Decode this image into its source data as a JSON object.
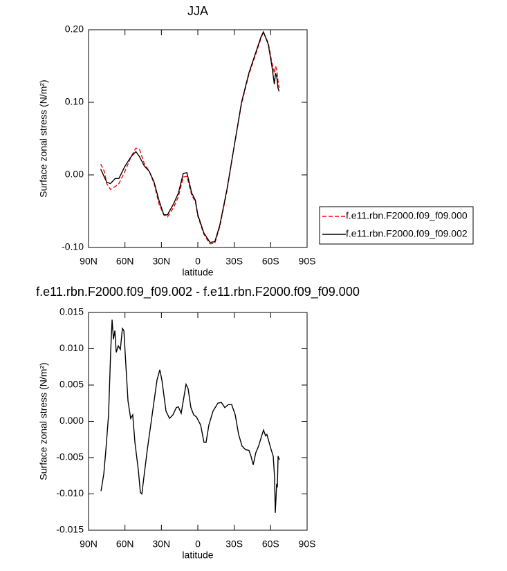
{
  "chart_data": [
    {
      "type": "line",
      "title": "JJA",
      "xlabel": "latitude",
      "ylabel": "Surface zonal stress (N/m²)",
      "x": [
        80,
        77,
        75,
        72,
        68,
        65,
        60,
        55,
        51,
        48,
        44,
        40,
        36,
        32,
        28,
        25,
        20,
        16,
        12,
        9,
        5,
        2,
        0,
        -5,
        -10,
        -14,
        -18,
        -24,
        -30,
        -36,
        -42,
        -48,
        -52,
        -54,
        -58,
        -61,
        -63,
        -64,
        -65,
        -66,
        -67
      ],
      "series": [
        {
          "name": "f.e11.rbn.F2000.f09_f09.000",
          "color": "#ff0000",
          "style": "dashed",
          "values": [
            0.015,
            0.005,
            -0.012,
            -0.02,
            -0.016,
            -0.012,
            0.005,
            0.025,
            0.037,
            0.035,
            0.015,
            0.005,
            -0.012,
            -0.04,
            -0.055,
            -0.058,
            -0.045,
            -0.03,
            -0.003,
            -0.002,
            -0.028,
            -0.037,
            -0.057,
            -0.082,
            -0.095,
            -0.094,
            -0.072,
            -0.022,
            0.04,
            0.098,
            0.138,
            0.168,
            0.188,
            0.197,
            0.182,
            0.155,
            0.14,
            0.15,
            0.145,
            0.13,
            0.12
          ]
        },
        {
          "name": "f.e11.rbn.F2000.f09_f09.002",
          "color": "#000000",
          "style": "solid",
          "values": [
            0.008,
            -0.003,
            -0.01,
            -0.012,
            -0.005,
            -0.005,
            0.012,
            0.025,
            0.032,
            0.025,
            0.012,
            0.005,
            -0.01,
            -0.035,
            -0.055,
            -0.055,
            -0.04,
            -0.025,
            0.002,
            0.003,
            -0.025,
            -0.035,
            -0.055,
            -0.08,
            -0.093,
            -0.092,
            -0.07,
            -0.02,
            0.04,
            0.1,
            0.14,
            0.17,
            0.19,
            0.197,
            0.18,
            0.15,
            0.125,
            0.14,
            0.135,
            0.12,
            0.115
          ]
        }
      ],
      "xlim": [
        90,
        -90
      ],
      "xticks": [
        {
          "value": 90,
          "label": "90N"
        },
        {
          "value": 60,
          "label": "60N"
        },
        {
          "value": 30,
          "label": "30N"
        },
        0,
        {
          "value": -30,
          "label": "30S"
        },
        {
          "value": -60,
          "label": "60S"
        },
        {
          "value": -90,
          "label": "90S"
        }
      ],
      "ylim": [
        -0.1,
        0.2
      ],
      "yticks": [
        {
          "value": 0.2,
          "label": "0.20"
        },
        {
          "value": 0.1,
          "label": "0.10"
        },
        {
          "value": 0,
          "label": "0.00"
        },
        {
          "value": -0.1,
          "label": "-0.10"
        }
      ],
      "legend": "right"
    },
    {
      "type": "line",
      "title": "f.e11.rbn.F2000.f09_f09.002 - f.e11.rbn.F2000.f09_f09.000",
      "xlabel": "latitude",
      "ylabel": "Surface zonal stress (N/m²)",
      "x": [
        79.7,
        77.4,
        75.7,
        73.5,
        71.8,
        70.6,
        69.5,
        68.3,
        67.2,
        65.5,
        63.8,
        62.1,
        60.9,
        59.2,
        57.5,
        55.3,
        53.6,
        51.8,
        49.0,
        47.3,
        46.1,
        44.4,
        41.6,
        37.6,
        33.6,
        31.3,
        29.6,
        26.2,
        23.3,
        20.5,
        17.7,
        16.0,
        13.7,
        12.0,
        9.7,
        8.0,
        5.7,
        3.4,
        1.1,
        -2.3,
        -5.1,
        -6.8,
        -9.1,
        -12.5,
        -16.5,
        -19.4,
        -22.2,
        -25.1,
        -27.9,
        -30.8,
        -33.6,
        -36.4,
        -39.3,
        -42.1,
        -43.8,
        -45.6,
        -47.8,
        -50.1,
        -52.4,
        -54.1,
        -55.8,
        -56.9,
        -58.7,
        -60.4,
        -62.1,
        -63.2,
        -63.8,
        -64.4,
        -64.9,
        -65.5,
        -66.1,
        -67.2
      ],
      "series": [
        {
          "color": "#000000",
          "style": "solid",
          "values": [
            -0.0096,
            -0.0072,
            -0.0039,
            0.0009,
            0.0095,
            0.014,
            0.0113,
            0.0125,
            0.0095,
            0.0104,
            0.0099,
            0.0128,
            0.0125,
            0.0076,
            0.0028,
            0.0004,
            0.0009,
            -0.0029,
            -0.0067,
            -0.0098,
            -0.01,
            -0.0077,
            -0.0039,
            0.0009,
            0.0057,
            0.0071,
            0.0057,
            0.0014,
            0.0004,
            0.0009,
            0.0019,
            0.002,
            0.0011,
            0.0028,
            0.0051,
            0.0045,
            0.0019,
            0.0009,
            0.0006,
            -0.0005,
            -0.0029,
            -0.0029,
            -0.0005,
            0.0014,
            0.0025,
            0.0026,
            0.0019,
            0.0023,
            0.0023,
            0.0009,
            -0.0018,
            -0.0034,
            -0.0039,
            -0.004,
            -0.0048,
            -0.006,
            -0.0043,
            -0.0034,
            -0.0021,
            -0.0012,
            -0.002,
            -0.0018,
            -0.0029,
            -0.0039,
            -0.0048,
            -0.0077,
            -0.0126,
            -0.0105,
            -0.0086,
            -0.0091,
            -0.0048,
            -0.0053
          ]
        }
      ],
      "xlim": [
        90,
        -90
      ],
      "xticks": [
        {
          "value": 90,
          "label": "90N"
        },
        {
          "value": 60,
          "label": "60N"
        },
        {
          "value": 30,
          "label": "30N"
        },
        0,
        {
          "value": -30,
          "label": "30S"
        },
        {
          "value": -60,
          "label": "60S"
        },
        {
          "value": -90,
          "label": "90S"
        }
      ],
      "ylim": [
        -0.015,
        0.015
      ],
      "yticks": [
        0.015,
        {
          "value": 0.01,
          "label": "0.010"
        },
        0.005,
        {
          "value": 0,
          "label": "0.000"
        },
        -0.005,
        {
          "value": -0.01,
          "label": "-0.010"
        },
        -0.015
      ]
    }
  ]
}
